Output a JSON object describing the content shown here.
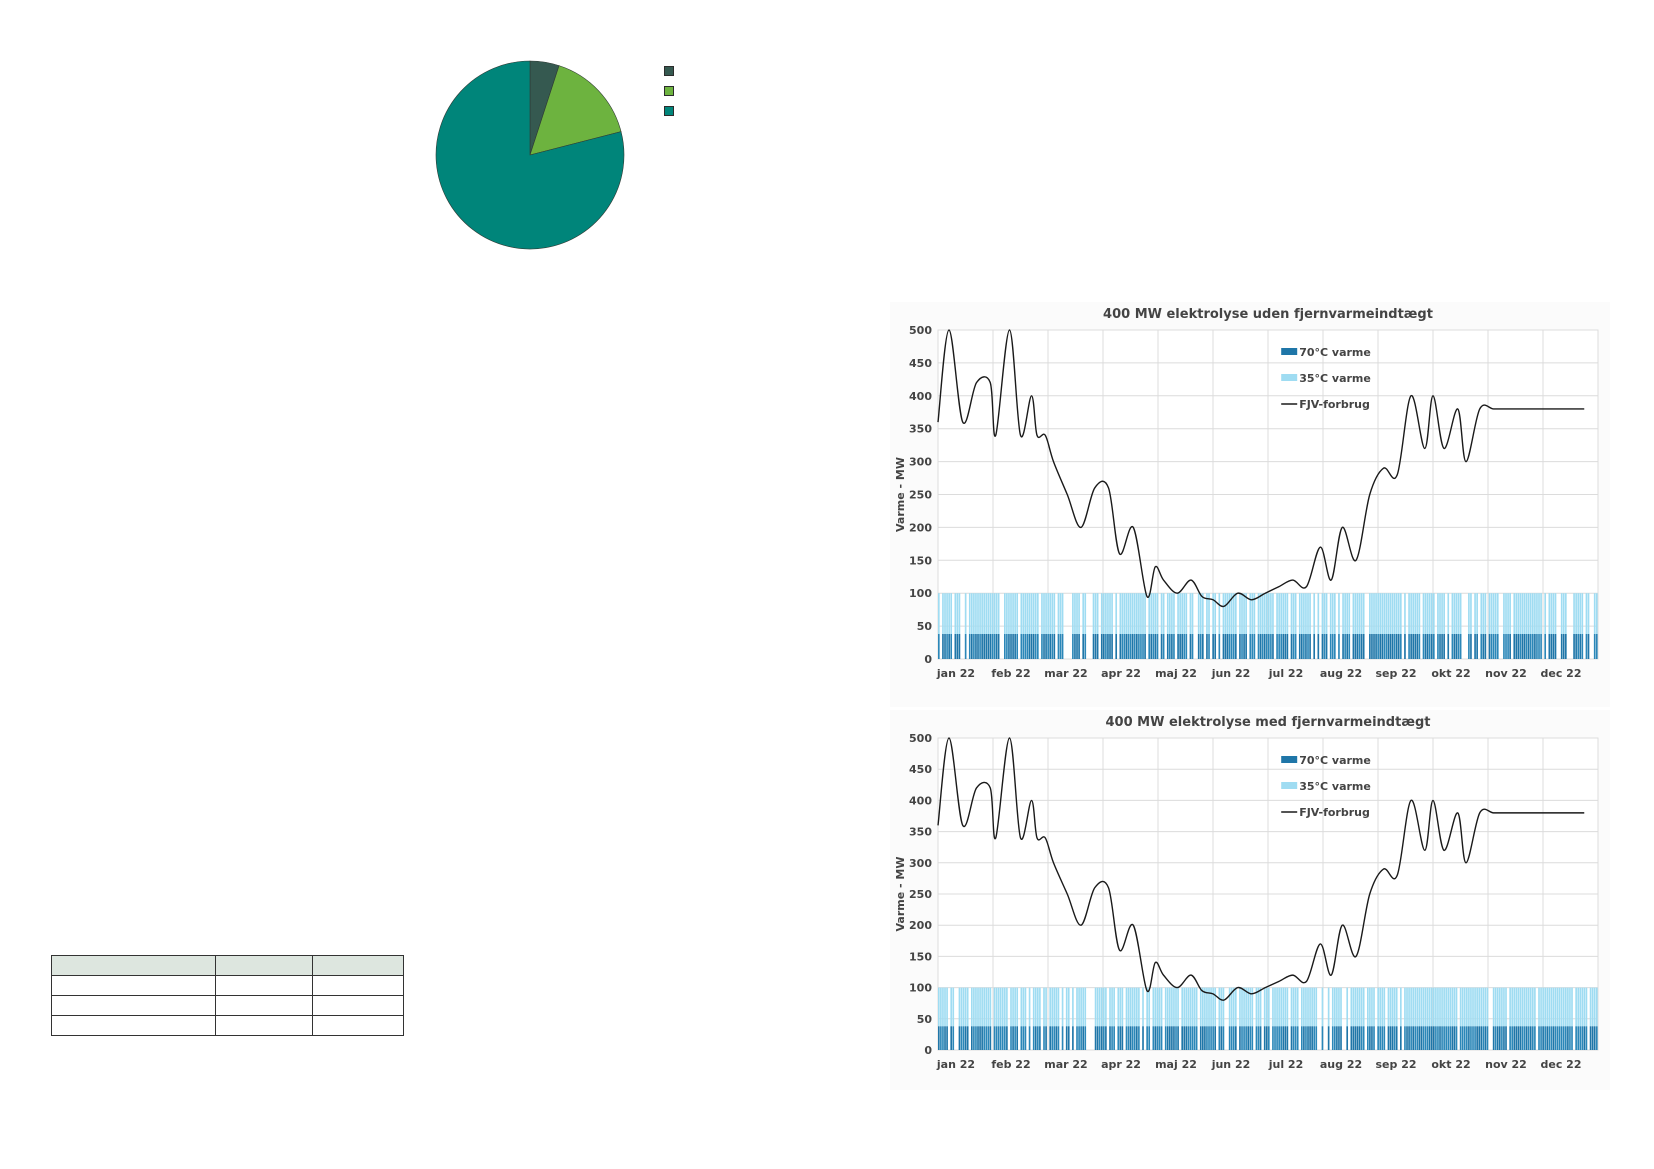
{
  "pie": {
    "type": "pie",
    "slices": [
      {
        "value": 5,
        "color": "#355950"
      },
      {
        "value": 16,
        "color": "#6db33f"
      },
      {
        "value": 79,
        "color": "#00857a"
      }
    ]
  },
  "table": {
    "rows": 4,
    "cols": 3
  },
  "chart_data": [
    {
      "type": "area",
      "title": "400 MW elektrolyse uden fjernvarmeindtægt",
      "ylabel": "Varme - MW",
      "ylim": [
        0,
        500
      ],
      "yticks": [
        "0",
        "50",
        "100",
        "150",
        "200",
        "250",
        "300",
        "350",
        "400",
        "450",
        "500"
      ],
      "categories": [
        "jan 22",
        "feb 22",
        "mar 22",
        "apr 22",
        "maj 22",
        "jun 22",
        "jul 22",
        "aug 22",
        "sep 22",
        "okt 22",
        "nov 22",
        "dec 22"
      ],
      "legend": [
        "70°C varme",
        "35°C varme",
        "FJV-forbrug"
      ],
      "legend_position": "top-right",
      "grid": true,
      "series": [
        {
          "name": "70°C varme",
          "type": "bar",
          "color": "#1f76a8",
          "level": 38
        },
        {
          "name": "35°C varme",
          "type": "bar",
          "color": "#9fdcf2",
          "level": 100
        },
        {
          "name": "FJV-forbrug",
          "type": "line",
          "color": "#1a1a1a",
          "x": [
            0.0,
            0.2,
            0.45,
            0.7,
            0.95,
            1.05,
            1.3,
            1.5,
            1.7,
            1.8,
            1.95,
            2.1,
            2.35,
            2.6,
            2.85,
            3.1,
            3.3,
            3.55,
            3.8,
            3.95,
            4.1,
            4.35,
            4.6,
            4.8,
            5.0,
            5.2,
            5.45,
            5.7,
            5.95,
            6.2,
            6.45,
            6.7,
            6.95,
            7.15,
            7.35,
            7.6,
            7.85,
            8.1,
            8.35,
            8.6,
            8.85,
            9.0,
            9.2,
            9.45,
            9.6,
            9.85,
            10.1,
            10.35,
            10.5,
            10.7,
            10.85,
            11.0,
            11.2,
            11.4,
            11.6,
            11.75
          ],
          "y": [
            360,
            500,
            360,
            420,
            420,
            340,
            500,
            340,
            400,
            340,
            340,
            300,
            250,
            200,
            260,
            260,
            160,
            200,
            95,
            140,
            120,
            100,
            120,
            95,
            90,
            80,
            100,
            90,
            100,
            110,
            120,
            110,
            170,
            120,
            200,
            150,
            250,
            290,
            280,
            400,
            320,
            400,
            320,
            380,
            300,
            380,
            380,
            380,
            380,
            380,
            380,
            380,
            380,
            380,
            380,
            380
          ]
        }
      ]
    },
    {
      "type": "area",
      "title": "400 MW elektrolyse med fjernvarmeindtægt",
      "ylabel": "Varme - MW",
      "ylim": [
        0,
        500
      ],
      "yticks": [
        "0",
        "50",
        "100",
        "150",
        "200",
        "250",
        "300",
        "350",
        "400",
        "450",
        "500"
      ],
      "categories": [
        "jan 22",
        "feb 22",
        "mar 22",
        "apr 22",
        "maj 22",
        "jun 22",
        "jul 22",
        "aug 22",
        "sep 22",
        "okt 22",
        "nov 22",
        "dec 22"
      ],
      "legend": [
        "70°C varme",
        "35°C varme",
        "FJV-forbrug"
      ],
      "legend_position": "top-right",
      "grid": true,
      "series": [
        {
          "name": "70°C varme",
          "type": "bar",
          "color": "#1f76a8",
          "level": 38
        },
        {
          "name": "35°C varme",
          "type": "bar",
          "color": "#9fdcf2",
          "level": 100
        },
        {
          "name": "FJV-forbrug",
          "type": "line",
          "color": "#1a1a1a",
          "x": [
            0.0,
            0.2,
            0.45,
            0.7,
            0.95,
            1.05,
            1.3,
            1.5,
            1.7,
            1.8,
            1.95,
            2.1,
            2.35,
            2.6,
            2.85,
            3.1,
            3.3,
            3.55,
            3.8,
            3.95,
            4.1,
            4.35,
            4.6,
            4.8,
            5.0,
            5.2,
            5.45,
            5.7,
            5.95,
            6.2,
            6.45,
            6.7,
            6.95,
            7.15,
            7.35,
            7.6,
            7.85,
            8.1,
            8.35,
            8.6,
            8.85,
            9.0,
            9.2,
            9.45,
            9.6,
            9.85,
            10.1,
            10.35,
            10.5,
            10.7,
            10.85,
            11.0,
            11.2,
            11.4,
            11.6,
            11.75
          ],
          "y": [
            360,
            500,
            360,
            420,
            420,
            340,
            500,
            340,
            400,
            340,
            340,
            300,
            250,
            200,
            260,
            260,
            160,
            200,
            95,
            140,
            120,
            100,
            120,
            95,
            90,
            80,
            100,
            90,
            100,
            110,
            120,
            110,
            170,
            120,
            200,
            150,
            250,
            290,
            280,
            400,
            320,
            400,
            320,
            380,
            300,
            380,
            380,
            380,
            380,
            380,
            380,
            380,
            380,
            380,
            380,
            380
          ]
        }
      ]
    }
  ]
}
